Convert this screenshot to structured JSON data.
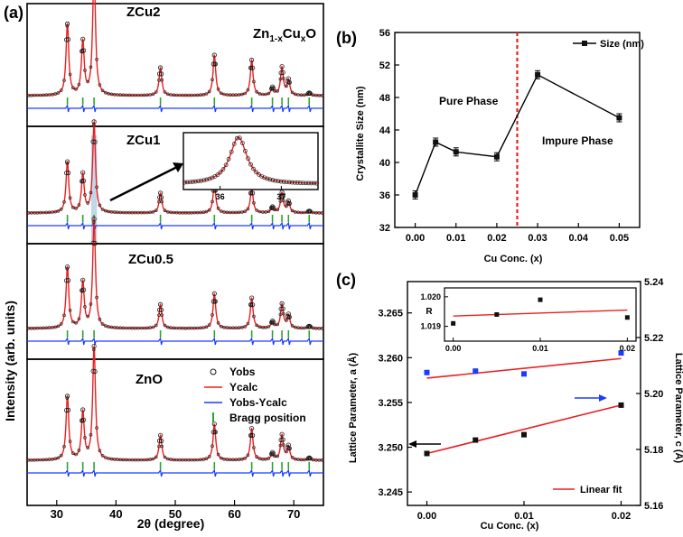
{
  "figure": {
    "panel_labels": {
      "a": "(a)",
      "b": "(b)",
      "c": "(c)"
    },
    "colors": {
      "axis": "#000000",
      "obs": "#1a1a1a",
      "calc": "#e8201f",
      "diff": "#1a3cff",
      "bragg": "#2aa52a",
      "highlight": "#a8c6e0",
      "marker": "#111111",
      "blue_marker": "#1a3cff",
      "threshold": "#e8201f"
    }
  },
  "chart_data": [
    {
      "id": "a",
      "type": "line",
      "title": "",
      "xlabel": "2θ (degree)",
      "ylabel": "Intensity (arb. units)",
      "xlim": [
        25,
        75
      ],
      "xticks": [
        30,
        40,
        50,
        60,
        70
      ],
      "formula": {
        "base": "Zn",
        "sub1": "1-x",
        "mid": "Cu",
        "sub2": "x",
        "end": "O"
      },
      "panels": [
        {
          "label": "ZCu2",
          "highlight": false
        },
        {
          "label": "ZCu1",
          "highlight": true
        },
        {
          "label": "ZCu0.5",
          "highlight": false
        },
        {
          "label": "ZnO",
          "highlight": false
        }
      ],
      "peaks": [
        {
          "pos": 31.8,
          "rel": 0.56
        },
        {
          "pos": 34.4,
          "rel": 0.42
        },
        {
          "pos": 36.3,
          "rel": 1.0
        },
        {
          "pos": 47.5,
          "rel": 0.22
        },
        {
          "pos": 56.6,
          "rel": 0.32
        },
        {
          "pos": 62.9,
          "rel": 0.28
        },
        {
          "pos": 66.4,
          "rel": 0.06
        },
        {
          "pos": 68.0,
          "rel": 0.22
        },
        {
          "pos": 69.1,
          "rel": 0.12
        },
        {
          "pos": 72.6,
          "rel": 0.02
        }
      ],
      "bragg_positions": [
        31.8,
        34.4,
        36.3,
        47.5,
        56.6,
        62.9,
        66.4,
        68.0,
        69.1,
        72.6
      ],
      "legend": [
        "Yobs",
        "Ycalc",
        "Yobs-Ycalc",
        "Bragg position"
      ],
      "inset": {
        "xlim": [
          35.4,
          37.6
        ],
        "xticks": [
          36,
          37
        ],
        "peak": 36.3
      }
    },
    {
      "id": "b",
      "type": "line",
      "title": "",
      "xlabel": "Cu Conc. (x)",
      "ylabel": "Crystallite Size (nm)",
      "xlim": [
        -0.005,
        0.055
      ],
      "ylim": [
        32,
        56
      ],
      "xticks": [
        0.0,
        0.01,
        0.02,
        0.03,
        0.04,
        0.05
      ],
      "xticklabels": [
        "0.00",
        "0.01",
        "0.02",
        "0.03",
        "0.04",
        "0.05"
      ],
      "yticks": [
        32,
        36,
        40,
        44,
        48,
        52,
        56
      ],
      "series": [
        {
          "name": "Size (nm)",
          "x": [
            0.0,
            0.005,
            0.01,
            0.02,
            0.03,
            0.05
          ],
          "values": [
            36.0,
            42.5,
            41.3,
            40.7,
            50.8,
            45.5
          ],
          "errors": [
            0.5,
            0.5,
            0.5,
            0.5,
            0.5,
            0.5
          ]
        }
      ],
      "threshold_x": 0.025,
      "annotations": [
        "Pure Phase",
        "Impure Phase"
      ],
      "legend_placement": "top-right"
    },
    {
      "id": "c",
      "type": "scatter",
      "title": "",
      "xlabel": "Cu Conc. (x)",
      "ylabel": "Lattice Parameter, a (Å)",
      "ylabel_right": "Lattice Parameter, c (Å)",
      "xlim": [
        -0.002,
        0.022
      ],
      "ylim": [
        3.2435,
        3.2685
      ],
      "ylim_right": [
        5.16,
        5.24
      ],
      "xticks": [
        0.0,
        0.01,
        0.02
      ],
      "xticklabels": [
        "0.00",
        "0.01",
        "0.02"
      ],
      "yticks": [
        3.245,
        3.25,
        3.255,
        3.26,
        3.265
      ],
      "yticklabels": [
        "3.245",
        "3.250",
        "3.255",
        "3.260",
        "3.265"
      ],
      "yticks_right": [
        5.16,
        5.18,
        5.2,
        5.22,
        5.24
      ],
      "yticklabels_right": [
        "5.16",
        "5.18",
        "5.20",
        "5.22",
        "5.24"
      ],
      "series": [
        {
          "name": "a",
          "axis": "left",
          "x": [
            0.0,
            0.005,
            0.01,
            0.02
          ],
          "values": [
            3.2493,
            3.2508,
            3.2514,
            3.2547
          ],
          "fit": [
            3.2493,
            3.2547
          ]
        },
        {
          "name": "c",
          "axis": "right",
          "x": [
            0.0,
            0.005,
            0.01,
            0.02
          ],
          "values": [
            5.2075,
            5.208,
            5.207,
            5.2145
          ],
          "fit": [
            5.2055,
            5.2125
          ]
        }
      ],
      "legend": [
        "Linear fit"
      ],
      "inset": {
        "ylabel": "R",
        "xlim": [
          -0.001,
          0.021
        ],
        "ylim": [
          1.0185,
          1.0203
        ],
        "xticks": [
          0.0,
          0.01,
          0.02
        ],
        "xticklabels": [
          "0.00",
          "0.01",
          "0.02"
        ],
        "yticks": [
          1.019,
          1.02
        ],
        "yticklabels": [
          "1.019",
          "1.020"
        ],
        "x": [
          0.0,
          0.005,
          0.01,
          0.02
        ],
        "values": [
          1.0191,
          1.0194,
          1.0199,
          1.0193
        ],
        "fit": [
          1.01935,
          1.01955
        ]
      }
    }
  ]
}
